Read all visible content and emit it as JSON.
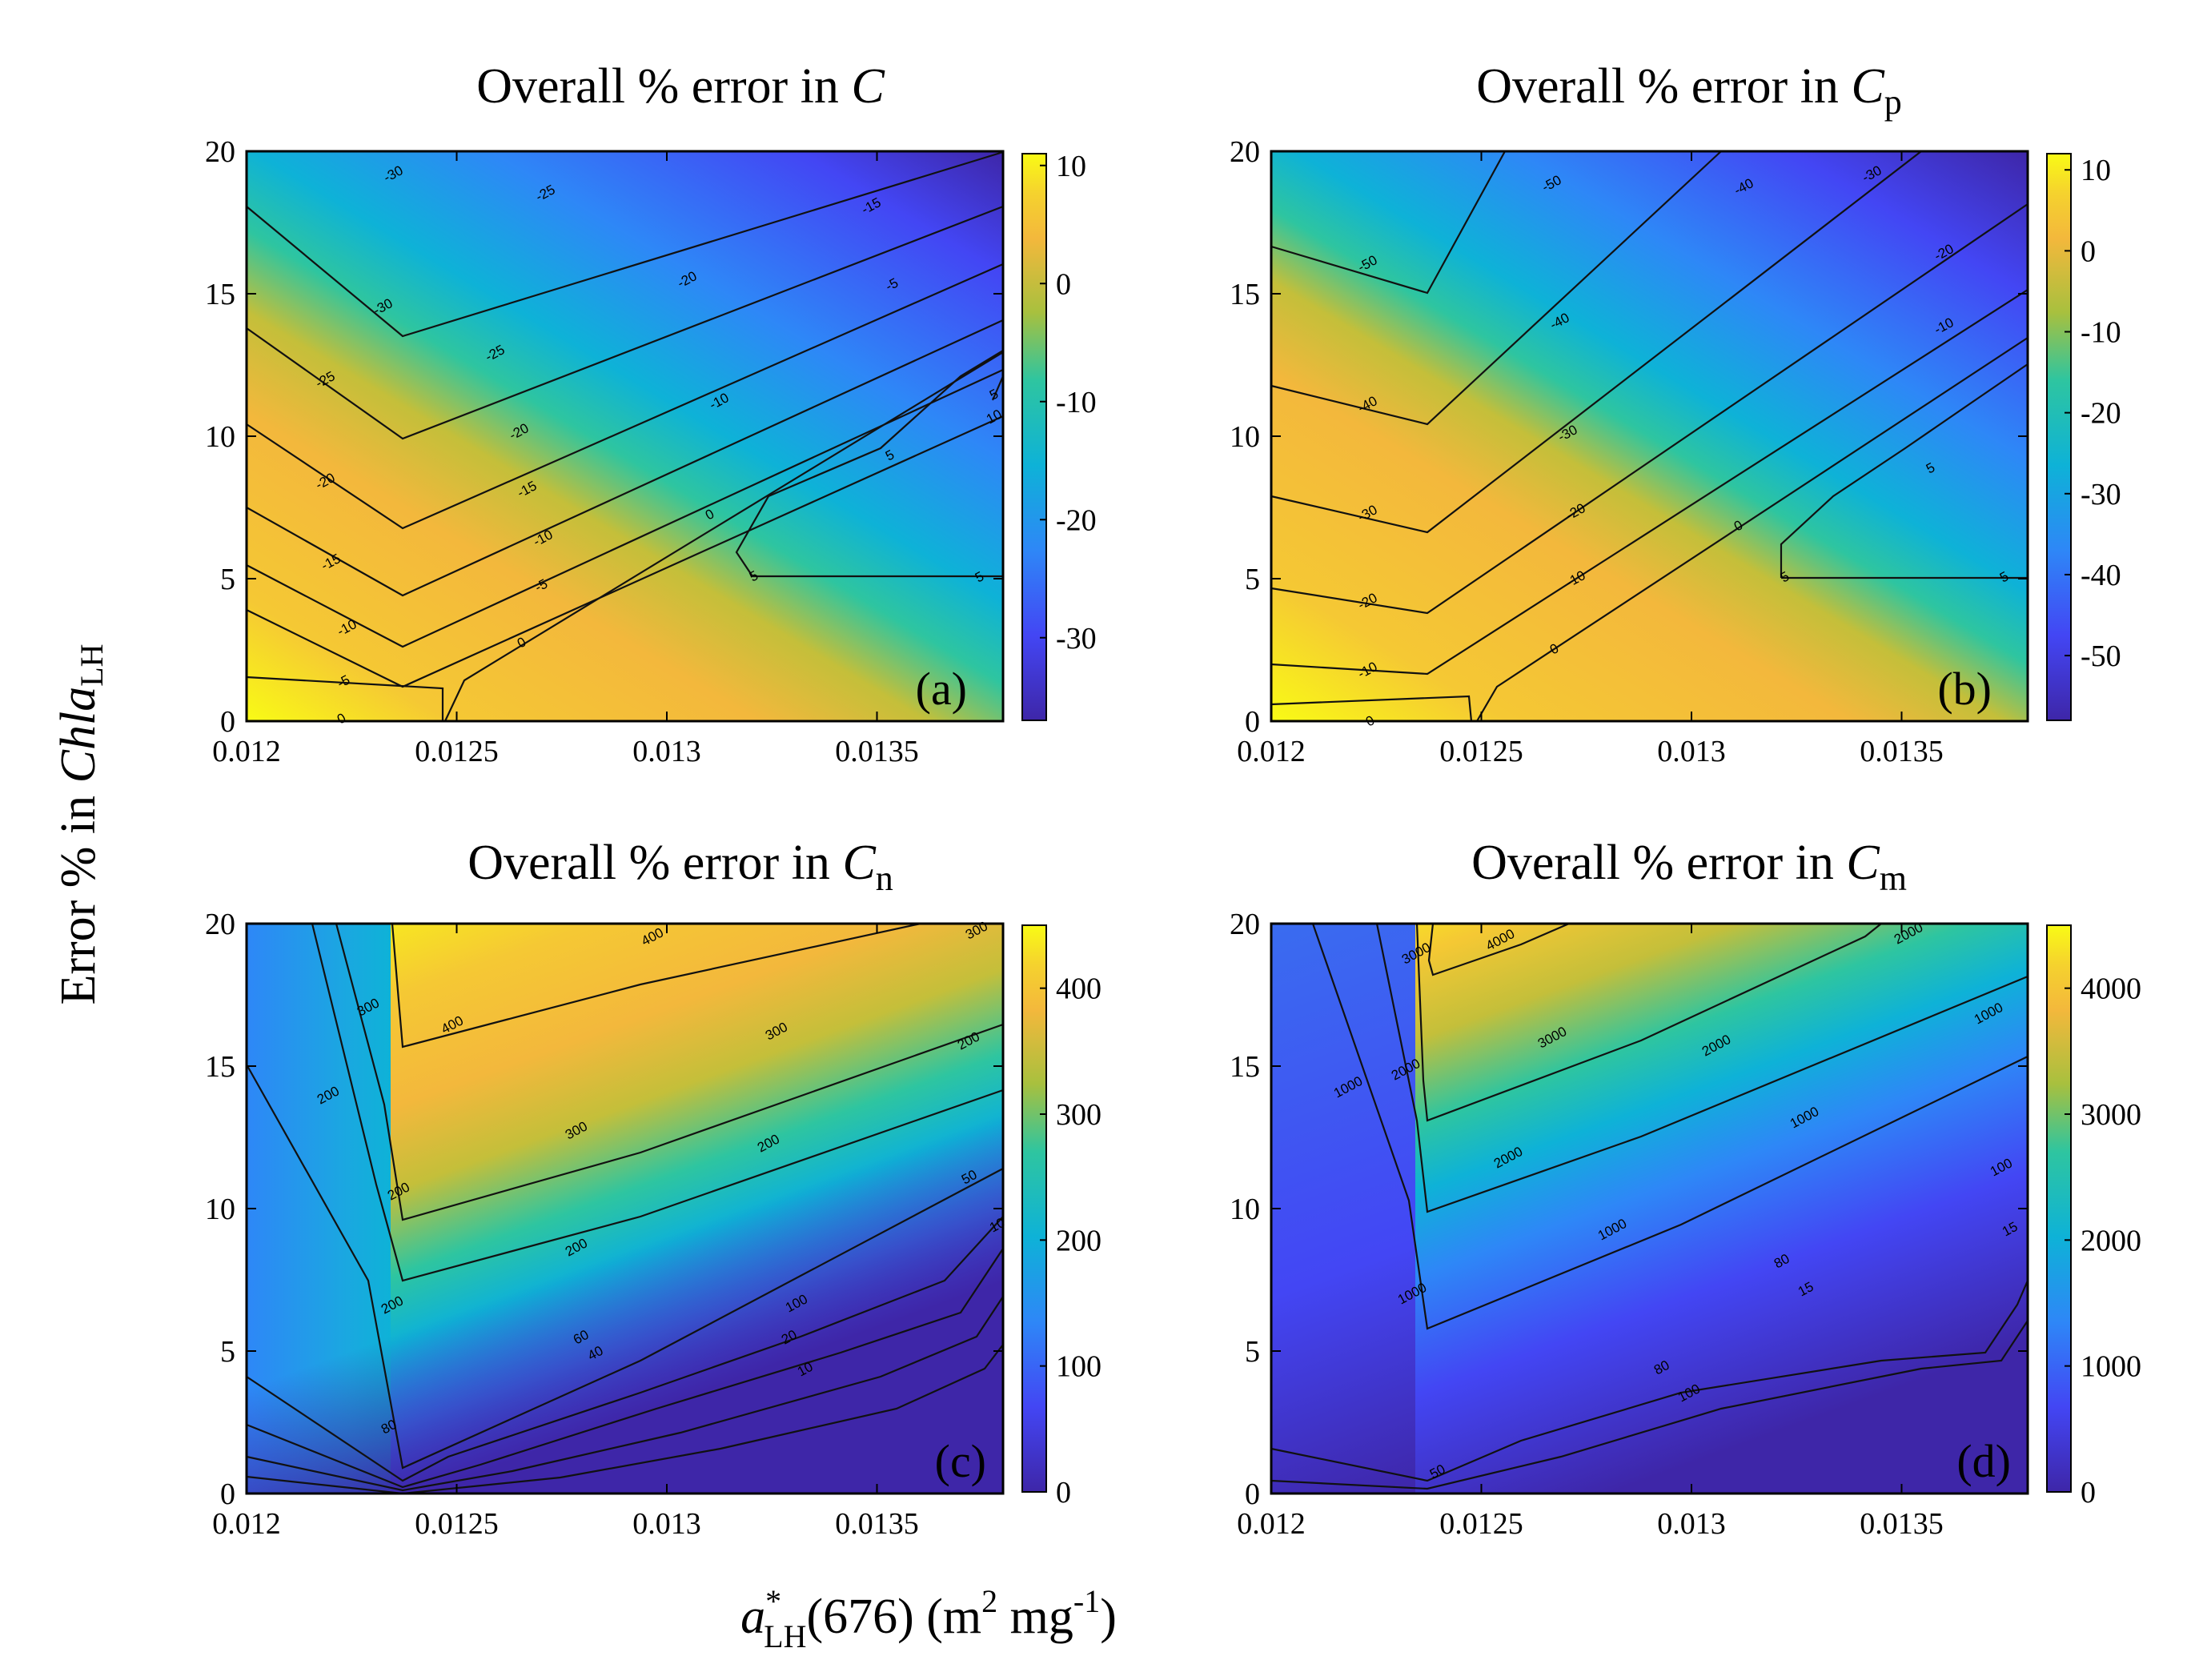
{
  "figure": {
    "ylabel_prefix": "Error  %  in  ",
    "ylabel_var": "Chla",
    "ylabel_sub": "LH",
    "xlabel_var": "a",
    "xlabel_sup": "*",
    "xlabel_sub": "LH",
    "xlabel_rest": "(676) (m",
    "xlabel_unit_sup": "2",
    "xlabel_unit_mid": " mg",
    "xlabel_unit_sup2": "-1",
    "xlabel_close": ")"
  },
  "chart_data": [
    {
      "type": "heatmap",
      "panel_label": "(a)",
      "title_prefix": "Overall % error in ",
      "title_var": "C",
      "title_sub": "",
      "x_ticks": [
        "0.012",
        "0.0125",
        "0.013",
        "0.0135"
      ],
      "y_ticks": [
        "0",
        "5",
        "10",
        "15",
        "20"
      ],
      "xlim": [
        0.012,
        0.0138
      ],
      "ylim": [
        0,
        20
      ],
      "colorbar": {
        "range": [
          -37,
          11
        ],
        "ticks": [
          "10",
          "0",
          "-10",
          "-20",
          "-30"
        ]
      },
      "contour_labels": [
        "-30",
        "-30",
        "-25",
        "-25",
        "-25",
        "-20",
        "-20",
        "-20",
        "-15",
        "-15",
        "-15",
        "-10",
        "-10",
        "-10",
        "-5",
        "-5",
        "-5",
        "0",
        "0",
        "0",
        "5",
        "5",
        "5",
        "5",
        "10"
      ]
    },
    {
      "type": "heatmap",
      "panel_label": "(b)",
      "title_prefix": "Overall % error in ",
      "title_var": "C",
      "title_sub": "p",
      "x_ticks": [
        "0.012",
        "0.0125",
        "0.013",
        "0.0135"
      ],
      "y_ticks": [
        "0",
        "5",
        "10",
        "15",
        "20"
      ],
      "xlim": [
        0.012,
        0.0138
      ],
      "ylim": [
        0,
        20
      ],
      "colorbar": {
        "range": [
          -58,
          12
        ],
        "ticks": [
          "10",
          "0",
          "-10",
          "-20",
          "-30",
          "-40",
          "-50"
        ]
      },
      "contour_labels": [
        "-50",
        "-50",
        "-40",
        "-40",
        "-40",
        "-30",
        "-30",
        "-30",
        "-20",
        "-20",
        "-20",
        "-10",
        "-10",
        "-10",
        "0",
        "0",
        "0",
        "5",
        "5",
        "5"
      ]
    },
    {
      "type": "heatmap",
      "panel_label": "(c)",
      "title_prefix": "Overall % error in ",
      "title_var": "C",
      "title_sub": "n",
      "x_ticks": [
        "0.012",
        "0.0125",
        "0.013",
        "0.0135"
      ],
      "y_ticks": [
        "0",
        "5",
        "10",
        "15",
        "20"
      ],
      "xlim": [
        0.012,
        0.0138
      ],
      "ylim": [
        0,
        20
      ],
      "colorbar": {
        "range": [
          0,
          450
        ],
        "ticks": [
          "400",
          "300",
          "200",
          "100",
          "0"
        ]
      },
      "contour_labels": [
        "400",
        "400",
        "300",
        "300",
        "300",
        "300",
        "200",
        "200",
        "200",
        "200",
        "200",
        "200",
        "100",
        "50",
        "10",
        "80",
        "60",
        "40",
        "20",
        "10"
      ]
    },
    {
      "type": "heatmap",
      "panel_label": "(d)",
      "title_prefix": "Overall % error in ",
      "title_var": "C",
      "title_sub": "m",
      "x_ticks": [
        "0.012",
        "0.0125",
        "0.013",
        "0.0135"
      ],
      "y_ticks": [
        "0",
        "5",
        "10",
        "15",
        "20"
      ],
      "xlim": [
        0.012,
        0.0138
      ],
      "ylim": [
        0,
        20
      ],
      "colorbar": {
        "range": [
          0,
          4500
        ],
        "ticks": [
          "4000",
          "3000",
          "2000",
          "1000",
          "0"
        ]
      },
      "contour_labels": [
        "4000",
        "3000",
        "3000",
        "2000",
        "2000",
        "2000",
        "2000",
        "1000",
        "1000",
        "1000",
        "1000",
        "1000",
        "100",
        "80",
        "80",
        "15",
        "100",
        "50",
        "15"
      ]
    }
  ]
}
